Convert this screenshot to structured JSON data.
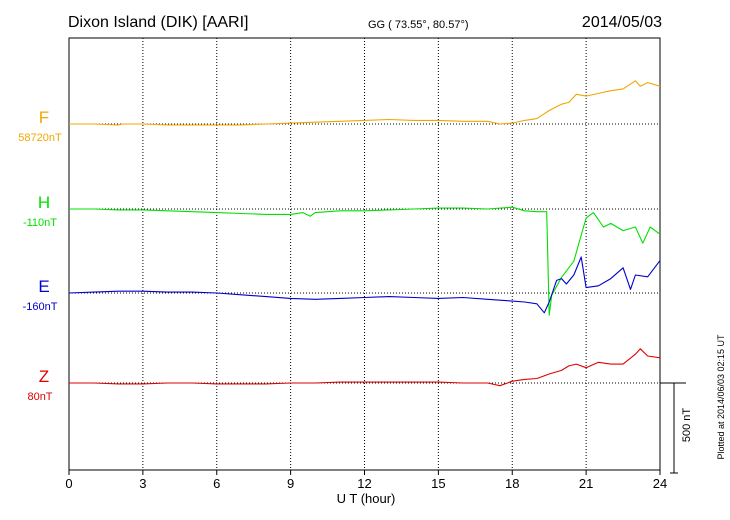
{
  "chart_data": {
    "type": "line",
    "title": "Dixon Island (DIK)  [AARI]",
    "coords": "GG ( 73.55°,  80.57°)",
    "date": "2014/05/03",
    "xlabel": "U T (hour)",
    "xlim": [
      0,
      24
    ],
    "xticks": [
      0,
      3,
      6,
      9,
      12,
      15,
      18,
      21,
      24
    ],
    "tick_labels": [
      "0",
      "3",
      "6",
      "9",
      "12",
      "15",
      "18",
      "21",
      "24"
    ],
    "scale_label": "500 nT",
    "scale_nT": 500,
    "plotted_label": "Plotted at 2014/06/03 02:15 UT",
    "grid": true,
    "series": [
      {
        "name": "F",
        "baseline_label": "58720nT",
        "color": "#f0a800",
        "x": [
          0,
          1,
          2,
          2.2,
          3,
          4,
          5,
          6,
          7,
          8,
          9,
          10,
          11,
          12,
          13,
          14,
          15,
          16,
          17,
          17.5,
          18,
          18.5,
          19,
          19.5,
          20,
          20.3,
          20.6,
          21,
          21.5,
          22,
          22.5,
          23,
          23.2,
          23.5,
          24
        ],
        "values": [
          0,
          0,
          -5,
          0,
          0,
          -5,
          -5,
          -5,
          -5,
          0,
          5,
          10,
          15,
          20,
          25,
          20,
          20,
          15,
          15,
          0,
          5,
          20,
          30,
          75,
          110,
          120,
          165,
          155,
          170,
          185,
          195,
          240,
          210,
          230,
          210
        ]
      },
      {
        "name": "H",
        "baseline_label": "-110nT",
        "color": "#00e000",
        "x": [
          0,
          1,
          2,
          3,
          4,
          5,
          6,
          7,
          8,
          9,
          9.5,
          9.8,
          10,
          11,
          12,
          13,
          14,
          15,
          16,
          17,
          18,
          18.5,
          19,
          19.4,
          19.5,
          19.6,
          20,
          20.5,
          21,
          21.3,
          21.7,
          22,
          22.5,
          23,
          23.3,
          23.6,
          24
        ],
        "values": [
          0,
          0,
          -5,
          -5,
          -10,
          -15,
          -20,
          -25,
          -30,
          -30,
          -20,
          -40,
          -20,
          -10,
          -10,
          -5,
          0,
          5,
          5,
          0,
          10,
          -10,
          -15,
          -15,
          -590,
          -480,
          -380,
          -290,
          -50,
          -20,
          -100,
          -80,
          -120,
          -100,
          -190,
          -100,
          -140
        ]
      },
      {
        "name": "E",
        "baseline_label": "-160nT",
        "color": "#0000d0",
        "x": [
          0,
          1,
          2,
          3,
          4,
          5,
          6,
          7,
          8,
          9,
          10,
          11,
          12,
          13,
          14,
          15,
          16,
          17,
          17.5,
          18,
          18.5,
          19,
          19.3,
          19.5,
          19.8,
          20,
          20.2,
          20.5,
          20.8,
          21,
          21.5,
          22,
          22.5,
          22.8,
          23,
          23.5,
          24
        ],
        "values": [
          0,
          5,
          10,
          10,
          5,
          5,
          0,
          -10,
          -20,
          -30,
          -35,
          -30,
          -25,
          -20,
          -25,
          -30,
          -25,
          -35,
          -40,
          -45,
          -50,
          -60,
          -110,
          -50,
          70,
          80,
          50,
          100,
          200,
          30,
          40,
          80,
          140,
          20,
          100,
          90,
          180
        ]
      },
      {
        "name": "Z",
        "baseline_label": "80nT",
        "color": "#e00000",
        "x": [
          0,
          1,
          2,
          3,
          4,
          5,
          6,
          7,
          8,
          9,
          10,
          11,
          12,
          13,
          14,
          15,
          16,
          17,
          17.5,
          18,
          18.5,
          19,
          19.5,
          20,
          20.3,
          20.6,
          21,
          21.5,
          22,
          22.5,
          23,
          23.2,
          23.5,
          24
        ],
        "values": [
          0,
          0,
          -5,
          -5,
          0,
          0,
          -5,
          -5,
          -5,
          0,
          0,
          5,
          5,
          5,
          5,
          5,
          0,
          0,
          -15,
          10,
          20,
          25,
          50,
          70,
          95,
          105,
          85,
          115,
          105,
          105,
          160,
          190,
          150,
          140
        ]
      }
    ]
  }
}
